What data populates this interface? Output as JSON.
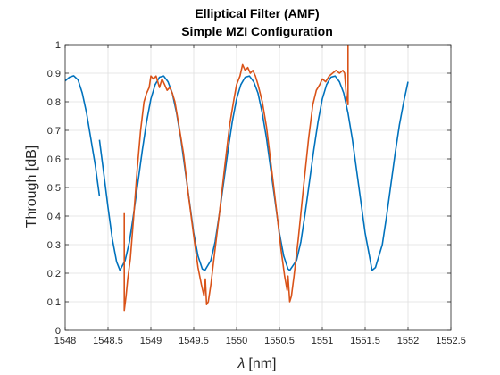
{
  "chart_data": {
    "type": "line",
    "title": [
      "Elliptical Filter (AMF)",
      "Simple MZI Configuration"
    ],
    "xlabel_symbol": "λ",
    "xlabel_unit": "[nm]",
    "ylabel": "Through [dB]",
    "xlim": [
      1548,
      1552.5
    ],
    "ylim": [
      0,
      1
    ],
    "x_ticks": [
      "1548",
      "1548.5",
      "1549",
      "1549.5",
      "1550",
      "1550.5",
      "1551",
      "1551.5",
      "1552",
      "1552.5"
    ],
    "y_ticks": [
      "0",
      "0.1",
      "0.2",
      "0.3",
      "0.4",
      "0.5",
      "0.6",
      "0.7",
      "0.8",
      "0.9",
      "1"
    ],
    "grid": true,
    "series": [
      {
        "color": "#0072BD",
        "segments": [
          [
            [
              1548.0,
              0.873
            ],
            [
              1548.05,
              0.886
            ],
            [
              1548.1,
              0.891
            ],
            [
              1548.15,
              0.877
            ],
            [
              1548.2,
              0.83
            ],
            [
              1548.25,
              0.76
            ],
            [
              1548.3,
              0.67
            ],
            [
              1548.35,
              0.58
            ],
            [
              1548.4,
              0.47
            ]
          ],
          [
            [
              1548.4,
              0.667
            ],
            [
              1548.45,
              0.55
            ],
            [
              1548.5,
              0.43
            ],
            [
              1548.55,
              0.32
            ],
            [
              1548.6,
              0.24
            ],
            [
              1548.64,
              0.21
            ],
            [
              1548.7,
              0.245
            ],
            [
              1548.75,
              0.31
            ],
            [
              1548.8,
              0.41
            ],
            [
              1548.85,
              0.52
            ],
            [
              1548.9,
              0.63
            ],
            [
              1548.95,
              0.73
            ],
            [
              1549.0,
              0.81
            ],
            [
              1549.05,
              0.86
            ],
            [
              1549.1,
              0.886
            ],
            [
              1549.15,
              0.89
            ],
            [
              1549.2,
              0.87
            ],
            [
              1549.25,
              0.83
            ],
            [
              1549.3,
              0.76
            ],
            [
              1549.35,
              0.67
            ],
            [
              1549.4,
              0.56
            ],
            [
              1549.45,
              0.45
            ],
            [
              1549.5,
              0.34
            ],
            [
              1549.55,
              0.26
            ],
            [
              1549.6,
              0.215
            ],
            [
              1549.63,
              0.21
            ],
            [
              1549.7,
              0.245
            ],
            [
              1549.75,
              0.31
            ],
            [
              1549.8,
              0.41
            ],
            [
              1549.85,
              0.52
            ],
            [
              1549.9,
              0.63
            ],
            [
              1549.95,
              0.73
            ],
            [
              1550.0,
              0.81
            ],
            [
              1550.05,
              0.86
            ],
            [
              1550.1,
              0.886
            ],
            [
              1550.15,
              0.89
            ],
            [
              1550.2,
              0.87
            ],
            [
              1550.25,
              0.83
            ],
            [
              1550.3,
              0.76
            ],
            [
              1550.35,
              0.67
            ],
            [
              1550.4,
              0.56
            ],
            [
              1550.45,
              0.45
            ],
            [
              1550.5,
              0.34
            ],
            [
              1550.55,
              0.26
            ],
            [
              1550.6,
              0.215
            ],
            [
              1550.62,
              0.21
            ],
            [
              1550.7,
              0.245
            ],
            [
              1550.75,
              0.31
            ],
            [
              1550.8,
              0.41
            ],
            [
              1550.85,
              0.52
            ],
            [
              1550.9,
              0.63
            ],
            [
              1550.95,
              0.73
            ],
            [
              1551.0,
              0.81
            ],
            [
              1551.05,
              0.86
            ],
            [
              1551.1,
              0.886
            ],
            [
              1551.15,
              0.89
            ],
            [
              1551.2,
              0.87
            ],
            [
              1551.25,
              0.83
            ],
            [
              1551.3,
              0.76
            ],
            [
              1551.35,
              0.67
            ],
            [
              1551.4,
              0.56
            ],
            [
              1551.45,
              0.45
            ],
            [
              1551.5,
              0.34
            ],
            [
              1551.55,
              0.26
            ],
            [
              1551.58,
              0.21
            ],
            [
              1551.62,
              0.22
            ],
            [
              1551.7,
              0.3
            ],
            [
              1551.75,
              0.4
            ],
            [
              1551.8,
              0.51
            ],
            [
              1551.85,
              0.62
            ],
            [
              1551.9,
              0.72
            ],
            [
              1551.95,
              0.8
            ],
            [
              1552.0,
              0.87
            ]
          ]
        ]
      },
      {
        "color": "#D95319",
        "segments": [
          [
            [
              1548.69,
              0.41
            ],
            [
              1548.69,
              0.07
            ],
            [
              1548.71,
              0.12
            ],
            [
              1548.73,
              0.18
            ],
            [
              1548.76,
              0.25
            ],
            [
              1548.8,
              0.4
            ],
            [
              1548.84,
              0.56
            ],
            [
              1548.88,
              0.7
            ],
            [
              1548.92,
              0.8
            ],
            [
              1548.95,
              0.83
            ],
            [
              1548.98,
              0.85
            ],
            [
              1549.0,
              0.89
            ],
            [
              1549.03,
              0.88
            ],
            [
              1549.06,
              0.89
            ],
            [
              1549.08,
              0.87
            ],
            [
              1549.1,
              0.85
            ],
            [
              1549.13,
              0.88
            ],
            [
              1549.16,
              0.86
            ],
            [
              1549.19,
              0.84
            ],
            [
              1549.22,
              0.85
            ],
            [
              1549.25,
              0.83
            ],
            [
              1549.28,
              0.8
            ],
            [
              1549.32,
              0.73
            ],
            [
              1549.38,
              0.62
            ],
            [
              1549.44,
              0.47
            ],
            [
              1549.5,
              0.33
            ],
            [
              1549.55,
              0.22
            ],
            [
              1549.59,
              0.16
            ],
            [
              1549.62,
              0.12
            ],
            [
              1549.635,
              0.18
            ],
            [
              1549.65,
              0.09
            ],
            [
              1549.67,
              0.1
            ],
            [
              1549.7,
              0.16
            ],
            [
              1549.74,
              0.26
            ],
            [
              1549.8,
              0.41
            ],
            [
              1549.86,
              0.57
            ],
            [
              1549.92,
              0.72
            ],
            [
              1549.97,
              0.81
            ],
            [
              1550.0,
              0.86
            ],
            [
              1550.04,
              0.89
            ],
            [
              1550.07,
              0.93
            ],
            [
              1550.1,
              0.91
            ],
            [
              1550.13,
              0.92
            ],
            [
              1550.16,
              0.9
            ],
            [
              1550.19,
              0.91
            ],
            [
              1550.22,
              0.89
            ],
            [
              1550.25,
              0.86
            ],
            [
              1550.3,
              0.8
            ],
            [
              1550.35,
              0.71
            ],
            [
              1550.41,
              0.56
            ],
            [
              1550.47,
              0.41
            ],
            [
              1550.52,
              0.28
            ],
            [
              1550.56,
              0.19
            ],
            [
              1550.59,
              0.14
            ],
            [
              1550.6,
              0.19
            ],
            [
              1550.62,
              0.1
            ],
            [
              1550.64,
              0.12
            ],
            [
              1550.67,
              0.19
            ],
            [
              1550.72,
              0.32
            ],
            [
              1550.78,
              0.5
            ],
            [
              1550.84,
              0.67
            ],
            [
              1550.89,
              0.79
            ],
            [
              1550.93,
              0.84
            ],
            [
              1550.97,
              0.86
            ],
            [
              1551.0,
              0.88
            ],
            [
              1551.04,
              0.87
            ],
            [
              1551.08,
              0.89
            ],
            [
              1551.12,
              0.9
            ],
            [
              1551.16,
              0.91
            ],
            [
              1551.2,
              0.9
            ],
            [
              1551.24,
              0.91
            ],
            [
              1551.26,
              0.9
            ],
            [
              1551.28,
              0.82
            ],
            [
              1551.3,
              0.79
            ],
            [
              1551.3,
              1.02
            ]
          ]
        ]
      }
    ]
  }
}
